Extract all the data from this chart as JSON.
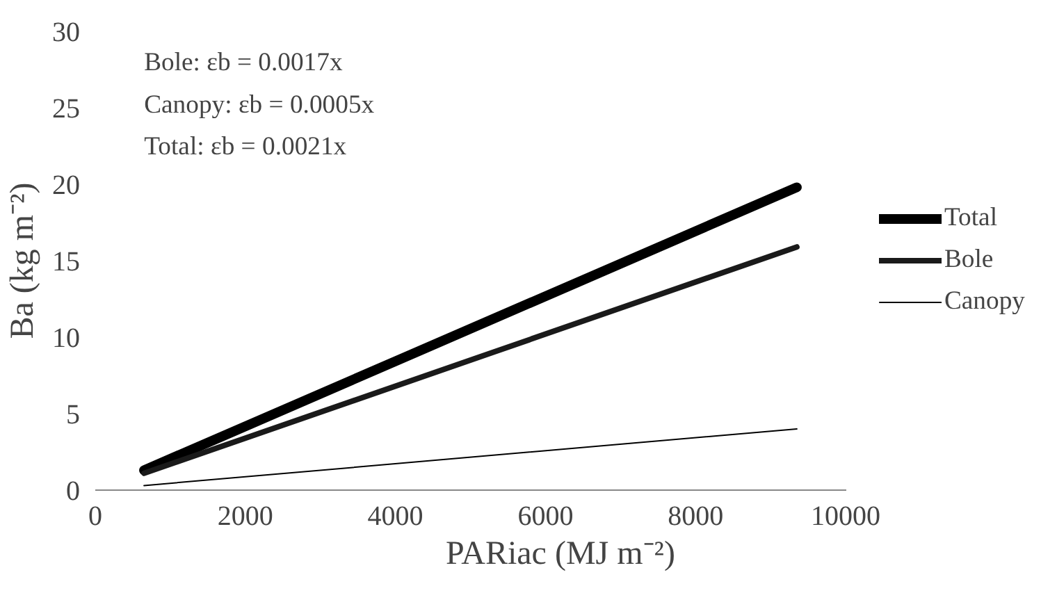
{
  "chart_data": {
    "type": "line",
    "xlabel": "PARiac (MJ m⁻²)",
    "ylabel": "Ba (kg m⁻²)",
    "xlim": [
      0,
      10000
    ],
    "xticks": [
      0,
      2000,
      4000,
      6000,
      8000,
      10000
    ],
    "ylim": [
      0,
      30
    ],
    "yticks": [
      0,
      5,
      10,
      15,
      20,
      25,
      30
    ],
    "x": [
      650,
      9350
    ],
    "series": [
      {
        "name": "Total",
        "color": "#000000",
        "values": [
          1.3,
          19.8
        ]
      },
      {
        "name": "Bole",
        "color": "#1a1a1a",
        "values": [
          1.1,
          15.9
        ]
      },
      {
        "name": "Canopy",
        "color": "#000000",
        "values": [
          0.3,
          4.0
        ]
      }
    ],
    "annotations": [
      "Bole: εb = 0.0017x",
      "Canopy: εb = 0.0005x",
      "Total:  εb = 0.0021x"
    ],
    "grid": false,
    "legend": "right",
    "marker": "none",
    "line_style": "solid"
  }
}
